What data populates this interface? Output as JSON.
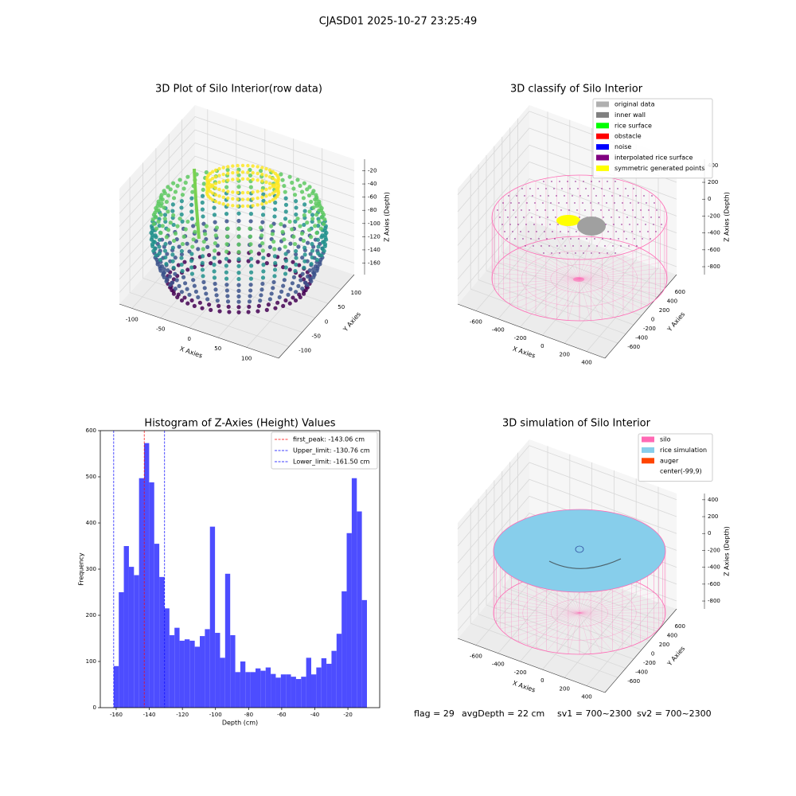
{
  "title": "CJASD01 2025-10-27 23:25:49",
  "chart_data": [
    {
      "type": "scatter3d",
      "title": "3D Plot of Silo Interior(row data)",
      "xlabel": "X Axies",
      "ylabel": "Y Axies",
      "zlabel": "Z Axies (Depth)",
      "xlim": [
        -122,
        156
      ],
      "xticks": [
        -100,
        -50,
        0,
        50,
        100
      ],
      "ylim": [
        -140,
        150
      ],
      "yticks": [
        -100,
        -50,
        0,
        50,
        100
      ],
      "zlim": [
        -177.5,
        -2.5
      ],
      "zticks": [
        -160,
        -140,
        -120,
        -100,
        -80,
        -60,
        -40,
        -20
      ]
    },
    {
      "type": "classify3d",
      "title": "3D classify of Silo Interior",
      "xlabel": "X Axies",
      "ylabel": "Y Axies",
      "zlabel": "Z Axies (Depth)",
      "xlim": [
        -765,
        565
      ],
      "xticks": [
        -600,
        -400,
        -200,
        0,
        200,
        400
      ],
      "ylim": [
        -927,
        891
      ],
      "yticks": [
        -600,
        -400,
        -200,
        0,
        200,
        400,
        600
      ],
      "zlim": [
        -894,
        474
      ],
      "zticks": [
        -800,
        -600,
        -400,
        -200,
        0,
        200,
        400
      ],
      "legend_loc": "upper right",
      "legend": [
        {
          "name": "original data",
          "color": "#b0b0b0"
        },
        {
          "name": "inner wall",
          "color": "#808080"
        },
        {
          "name": "rice surface",
          "color": "#00ff00"
        },
        {
          "name": "obstacle",
          "color": "#ff0000"
        },
        {
          "name": "noise",
          "color": "#0000ff"
        },
        {
          "name": "interpolated rice surface",
          "color": "#800080"
        },
        {
          "name": "symmetric generated points",
          "color": "#ffff00"
        }
      ]
    },
    {
      "type": "histogram",
      "title": "Histogram of Z-Axies (Height) Values",
      "xlabel": "Depth (cm)",
      "ylabel": "Frequency",
      "color": "#4d4dff",
      "xlim": [
        -169.6,
        -0.8
      ],
      "xticks": [
        -160,
        -140,
        -120,
        -100,
        -80,
        -60,
        -40,
        -20
      ],
      "ylim": [
        0,
        600
      ],
      "yticks": [
        0,
        100,
        200,
        300,
        400,
        500,
        600
      ],
      "bins": [
        -161.5,
        -158.44,
        -155.38,
        -152.32,
        -149.26,
        -146.2,
        -143.14,
        -140.08,
        -137.02,
        -133.96,
        -130.9,
        -127.84,
        -124.78,
        -121.72,
        -118.66,
        -115.6,
        -112.54,
        -109.48,
        -106.42,
        -103.36,
        -100.3,
        -97.24,
        -94.18,
        -91.12,
        -88.06,
        -85.0,
        -81.94,
        -78.88,
        -75.82,
        -72.76,
        -69.7,
        -66.64,
        -63.58,
        -60.52,
        -57.46,
        -54.4,
        -51.34,
        -48.28,
        -45.22,
        -42.16,
        -39.1,
        -36.04,
        -32.98,
        -29.92,
        -26.86,
        -23.8,
        -20.74,
        -17.68,
        -14.62,
        -11.56,
        -8.5
      ],
      "values": [
        90,
        250,
        350,
        305,
        287,
        497,
        573,
        488,
        355,
        283,
        215,
        157,
        173,
        145,
        148,
        145,
        132,
        155,
        170,
        392,
        162,
        108,
        290,
        157,
        77,
        100,
        77,
        77,
        85,
        80,
        87,
        73,
        65,
        72,
        72,
        67,
        62,
        67,
        108,
        72,
        87,
        107,
        95,
        123,
        160,
        252,
        378,
        497,
        425,
        233
      ],
      "legend_loc": "upper right",
      "vlines": [
        {
          "name": "first_peak: -143.06 cm",
          "value": -143.06,
          "color": "#ff0000"
        },
        {
          "name": "Upper_limit: -130.76 cm",
          "value": -130.76,
          "color": "#0000ff"
        },
        {
          "name": "Lower_limit: -161.50 cm",
          "value": -161.5,
          "color": "#0000ff"
        }
      ]
    },
    {
      "type": "simulation3d",
      "title": "3D simulation of Silo Interior",
      "xlabel": "X Axies",
      "ylabel": "Y Axies",
      "zlabel": "Z Axies (Depth)",
      "xlim": [
        -765,
        565
      ],
      "xticks": [
        -600,
        -400,
        -200,
        0,
        200,
        400
      ],
      "ylim": [
        -927,
        891
      ],
      "yticks": [
        -600,
        -400,
        -200,
        0,
        200,
        400,
        600
      ],
      "zlim": [
        -894,
        474
      ],
      "zticks": [
        -800,
        -600,
        -400,
        -200,
        0,
        200,
        400
      ],
      "legend_loc": "upper right",
      "legend": [
        {
          "name": "silo",
          "color": "#ff69b4"
        },
        {
          "name": "rice simulation",
          "color": "#87ceeb"
        },
        {
          "name": "auger",
          "color": "#ff4500"
        },
        {
          "name": "center(-99,9)",
          "color": "#ffffff"
        }
      ]
    }
  ],
  "footer": [
    "flag = 29",
    "avgDepth = 22 cm",
    "sv1 = 700~2300",
    "sv2 = 700~2300"
  ]
}
